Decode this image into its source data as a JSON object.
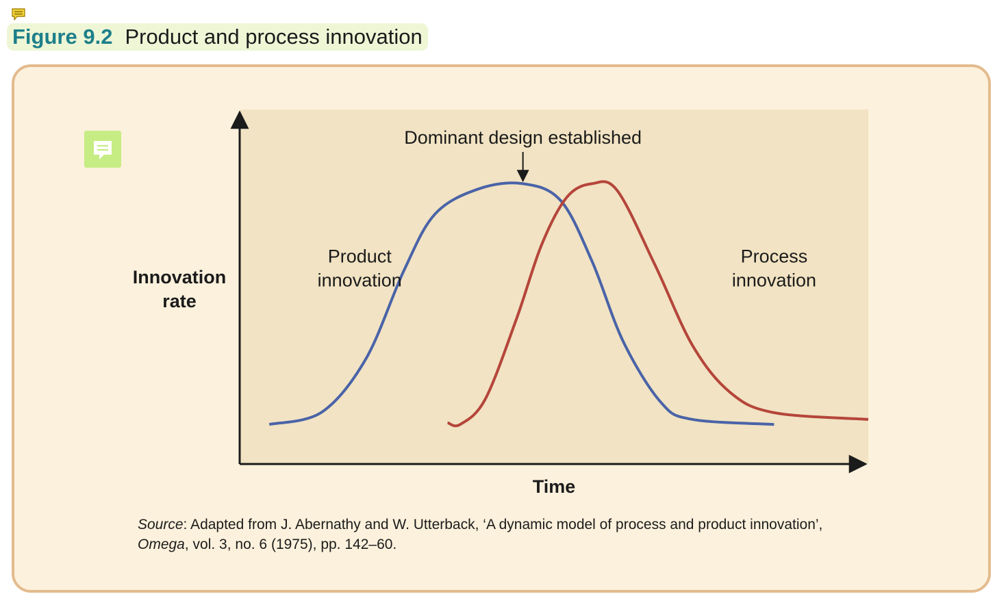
{
  "header": {
    "figure_label": "Figure 9.2",
    "figure_title": "Product and process innovation"
  },
  "icons": {
    "header_note": "note-icon",
    "panel_comment": "comment-icon"
  },
  "colors": {
    "panel_background": "#fcf1dc",
    "panel_border": "#e3bb8e",
    "plot_background": "#f1e3c3",
    "product_curve": "#4a63a8",
    "process_curve": "#b5453a",
    "figure_label": "#1d7f8a",
    "icon_green": "#c6ec84"
  },
  "chart_data": {
    "type": "line",
    "title": "",
    "xlabel": "Time",
    "ylabel_lines": [
      "Innovation",
      "rate"
    ],
    "ticks": false,
    "grid": false,
    "xlim": [
      0,
      100
    ],
    "ylim": [
      0,
      100
    ],
    "annotation": {
      "text": "Dominant design established",
      "x": 45,
      "y": 80
    },
    "series": [
      {
        "name": "Product innovation",
        "label_lines": [
          "Product",
          "innovation"
        ],
        "label_pos": [
          19,
          55
        ],
        "color": "#4a63a8",
        "points": [
          [
            4.6,
            8.5
          ],
          [
            13,
            12.2
          ],
          [
            20,
            28
          ],
          [
            26,
            54
          ],
          [
            31,
            71
          ],
          [
            38,
            78.5
          ],
          [
            45,
            80
          ],
          [
            51,
            75
          ],
          [
            56,
            57
          ],
          [
            61,
            33
          ],
          [
            67,
            15
          ],
          [
            72,
            10
          ],
          [
            85,
            8.5
          ]
        ]
      },
      {
        "name": "Process innovation",
        "label_lines": [
          "Process",
          "innovation"
        ],
        "label_pos": [
          85,
          55
        ],
        "color": "#b5453a",
        "points": [
          [
            33,
            9
          ],
          [
            35,
            8.5
          ],
          [
            39,
            16
          ],
          [
            44,
            40
          ],
          [
            48,
            62
          ],
          [
            52,
            76
          ],
          [
            56,
            80
          ],
          [
            60,
            78
          ],
          [
            66,
            56
          ],
          [
            72,
            32
          ],
          [
            78,
            18
          ],
          [
            85,
            12
          ],
          [
            100,
            10
          ]
        ]
      }
    ]
  },
  "source": {
    "line1_italic": "Source",
    "line1_rest": ": Adapted from J. Abernathy and W. Utterback, ‘A dynamic model of process and product innovation’,",
    "line2_italic": "Omega",
    "line2_rest": ", vol. 3, no. 6 (1975), pp. 142–60."
  }
}
